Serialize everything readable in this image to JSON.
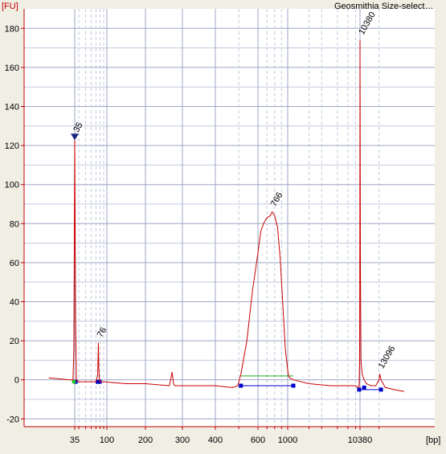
{
  "chart_data": {
    "type": "line",
    "title": "Geosmithia Size-select…",
    "y_unit_label": "[FU]",
    "x_unit_label": "[bp]",
    "ylim": [
      -24,
      190
    ],
    "y_ticks": [
      -20,
      0,
      20,
      40,
      60,
      80,
      100,
      120,
      140,
      160,
      180
    ],
    "x_ticks": [
      "35",
      "100",
      "200",
      "300",
      "400",
      "600",
      "1000",
      "10380"
    ],
    "grid": true,
    "colors": {
      "trace": "#cc0000",
      "background": "#ffffff",
      "grid_major": "#9ea6c4",
      "grid_minor": "#c3c9dd",
      "axis": "#c00000",
      "region_bar": "#0000cc",
      "marker_line": "#22aa22",
      "upper_label": "#aa22aa",
      "lower_label": "#007700"
    },
    "peak_labels": [
      {
        "text": "35",
        "color": "#007700"
      },
      {
        "text": "76",
        "color": "#000000"
      },
      {
        "text": "766",
        "color": "#000000"
      },
      {
        "text": "10380",
        "color": "#aa22aa"
      },
      {
        "text": "13096",
        "color": "#000000"
      }
    ],
    "trace": {
      "name": "",
      "x_scale": "ladder",
      "x_bp": [
        15,
        30,
        33,
        34,
        35,
        36,
        37,
        40,
        60,
        70,
        74,
        76,
        77,
        79,
        90,
        140,
        200,
        260,
        268,
        272,
        276,
        300,
        400,
        470,
        495,
        510,
        540,
        570,
        600,
        630,
        660,
        700,
        740,
        766,
        800,
        840,
        880,
        920,
        960,
        1000,
        1030,
        1070,
        1200,
        2000,
        4000,
        7000,
        9000,
        9800,
        10100,
        10250,
        10330,
        10380,
        10430,
        10500,
        10650,
        10900,
        11200,
        11800,
        12500,
        13000,
        13096,
        13300,
        14000,
        15500,
        17500
      ],
      "y_fu": [
        1,
        0,
        0,
        15,
        123,
        30,
        0,
        -1,
        -1,
        -1,
        2,
        19,
        5,
        -1,
        -1,
        -2,
        -2,
        -3,
        4,
        -2,
        -3,
        -3,
        -3,
        -4,
        -3,
        3,
        20,
        46,
        65,
        76,
        80,
        83,
        84,
        86,
        84,
        78,
        62,
        38,
        16,
        5,
        2,
        1,
        0,
        -2,
        -3,
        -3,
        -3,
        -4,
        -3,
        10,
        80,
        174,
        60,
        10,
        3,
        0,
        -2,
        -3,
        -3,
        0,
        3,
        0,
        -4,
        -5,
        -6
      ]
    },
    "regions": [
      {
        "from": "510",
        "to": "1200",
        "y": -3
      },
      {
        "from": "10100",
        "to": "13300",
        "y": -5
      }
    ],
    "ladder_bp": [
      35,
      100,
      200,
      300,
      400,
      600,
      1000,
      10380
    ]
  }
}
